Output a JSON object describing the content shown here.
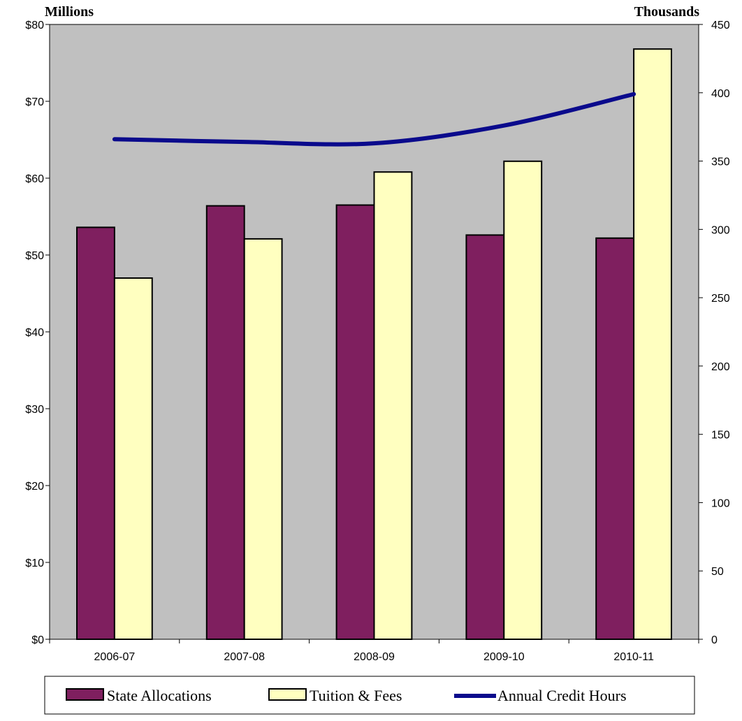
{
  "chart_data": {
    "type": "bar",
    "categories": [
      "2006-07",
      "2007-08",
      "2008-09",
      "2009-10",
      "2010-11"
    ],
    "series": [
      {
        "name": "State Allocations",
        "type": "bar",
        "axis": "left",
        "color": "#7f1f5f",
        "values": [
          53.6,
          56.4,
          56.5,
          52.6,
          52.2
        ]
      },
      {
        "name": "Tuition & Fees",
        "type": "bar",
        "axis": "left",
        "color": "#ffffc0",
        "values": [
          47.0,
          52.1,
          60.8,
          62.2,
          76.8
        ]
      },
      {
        "name": "Annual Credit Hours",
        "type": "line",
        "axis": "right",
        "color": "#0a0a8c",
        "values": [
          366,
          364,
          363,
          376,
          399
        ]
      }
    ],
    "left_axis": {
      "label": "Millions",
      "ylim": [
        0,
        80
      ],
      "ticks": [
        "$0",
        "$10",
        "$20",
        "$30",
        "$40",
        "$50",
        "$60",
        "$70",
        "$80"
      ]
    },
    "right_axis": {
      "label": "Thousands",
      "ylim": [
        0,
        450
      ],
      "ticks": [
        "0",
        "50",
        "100",
        "150",
        "200",
        "250",
        "300",
        "350",
        "400",
        "450"
      ]
    },
    "plot_background": "#c0c0c0",
    "grid": false,
    "legend": "bottom"
  }
}
